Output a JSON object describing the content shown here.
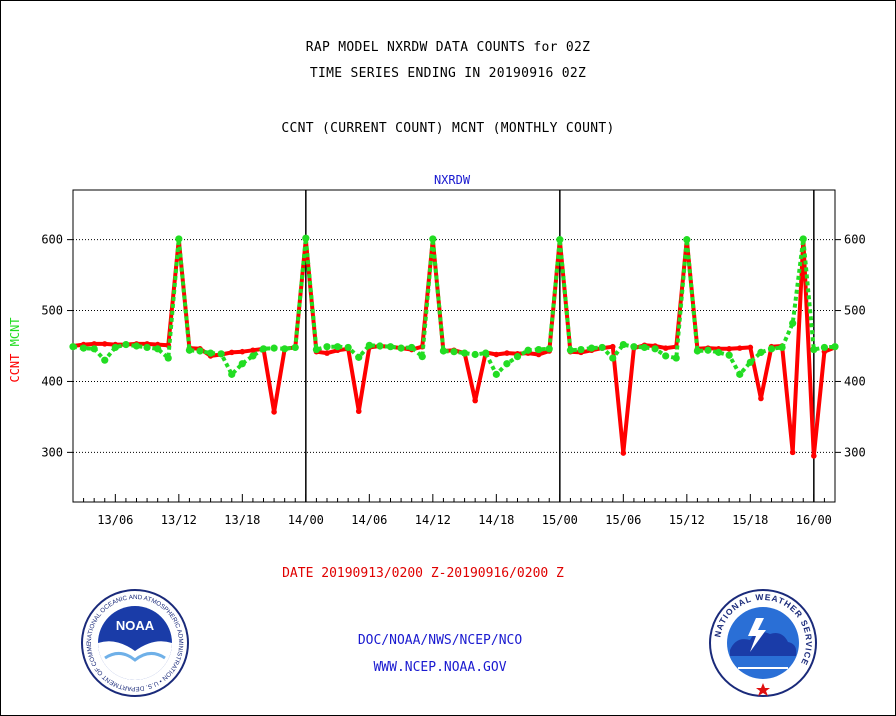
{
  "header": {
    "line1": "RAP MODEL NXRDW DATA COUNTS for 02Z",
    "line2": "TIME SERIES ENDING IN 20190916 02Z",
    "line3": "CCNT (CURRENT COUNT) MCNT (MONTHLY COUNT)"
  },
  "footer": {
    "date_range": "DATE 20190913/0200 Z-20190916/0200 Z",
    "org_path": "DOC/NOAA/NWS/NCEP/NCO",
    "website": "WWW.NCEP.NOAA.GOV"
  },
  "logos": {
    "noaa_text": "NOAA",
    "noaa_ring": "NATIONAL OCEANIC AND ATMOSPHERIC ADMINISTRATION • U.S. DEPARTMENT OF COMMERCE •",
    "nws_ring": "NATIONAL WEATHER SERVICE"
  },
  "colors": {
    "ccnt": "#ff0000",
    "mcnt": "#22dd22",
    "axis": "#000000",
    "chart_title": "#1a1ad0"
  },
  "chart_data": {
    "type": "line",
    "title": "NXRDW",
    "ylabel_parts": [
      {
        "text": "CCNT",
        "color": "#ff0000"
      },
      {
        "text": "MCNT",
        "color": "#22dd22"
      }
    ],
    "xlabel": "",
    "x_unit": "hours from 20190913/02Z",
    "xlim": [
      0,
      72
    ],
    "ylim": [
      230,
      670
    ],
    "yticks": [
      300,
      400,
      500,
      600
    ],
    "grid": "horizontal dotted",
    "xticks": [
      {
        "x": 4,
        "label": "13/06"
      },
      {
        "x": 10,
        "label": "13/12"
      },
      {
        "x": 16,
        "label": "13/18"
      },
      {
        "x": 22,
        "label": "14/00"
      },
      {
        "x": 28,
        "label": "14/06"
      },
      {
        "x": 34,
        "label": "14/12"
      },
      {
        "x": 40,
        "label": "14/18"
      },
      {
        "x": 46,
        "label": "15/00"
      },
      {
        "x": 52,
        "label": "15/06"
      },
      {
        "x": 58,
        "label": "15/12"
      },
      {
        "x": 64,
        "label": "15/18"
      },
      {
        "x": 70,
        "label": "16/00"
      }
    ],
    "day_boundaries": [
      22,
      46,
      70
    ],
    "series": [
      {
        "name": "CCNT",
        "color": "#ff0000",
        "x": [
          0,
          1,
          2,
          3,
          4,
          5,
          6,
          7,
          8,
          9,
          10,
          11,
          12,
          13,
          14,
          15,
          16,
          17,
          18,
          19,
          20,
          21,
          22,
          23,
          24,
          25,
          26,
          27,
          28,
          29,
          30,
          31,
          32,
          33,
          34,
          35,
          36,
          37,
          38,
          39,
          40,
          41,
          42,
          43,
          44,
          45,
          46,
          47,
          48,
          49,
          50,
          51,
          52,
          53,
          54,
          55,
          56,
          57,
          58,
          59,
          60,
          61,
          62,
          63,
          64,
          65,
          66,
          67,
          68,
          69,
          70,
          71,
          72
        ],
        "values": [
          450,
          452,
          453,
          453,
          452,
          452,
          453,
          453,
          452,
          451,
          600,
          447,
          446,
          436,
          438,
          441,
          442,
          444,
          446,
          357,
          446,
          448,
          600,
          442,
          440,
          444,
          446,
          358,
          448,
          450,
          449,
          447,
          445,
          449,
          600,
          443,
          444,
          440,
          373,
          441,
          438,
          440,
          439,
          440,
          438,
          443,
          600,
          442,
          441,
          444,
          447,
          449,
          299,
          447,
          451,
          450,
          447,
          449,
          600,
          446,
          447,
          446,
          446,
          447,
          448,
          376,
          449,
          450,
          300,
          600,
          295,
          442,
          448
        ]
      },
      {
        "name": "MCNT",
        "color": "#22dd22",
        "x": [
          0,
          1,
          2,
          3,
          4,
          5,
          6,
          7,
          8,
          9,
          10,
          11,
          12,
          13,
          14,
          15,
          16,
          17,
          18,
          19,
          20,
          21,
          22,
          23,
          24,
          25,
          26,
          27,
          28,
          29,
          30,
          31,
          32,
          33,
          34,
          35,
          36,
          37,
          38,
          39,
          40,
          41,
          42,
          43,
          44,
          45,
          46,
          47,
          48,
          49,
          50,
          51,
          52,
          53,
          54,
          55,
          56,
          57,
          58,
          59,
          60,
          61,
          62,
          63,
          64,
          65,
          66,
          67,
          68,
          69,
          70,
          71,
          72
        ],
        "values": [
          449,
          447,
          446,
          430,
          448,
          452,
          450,
          448,
          446,
          433,
          601,
          444,
          443,
          440,
          439,
          410,
          425,
          436,
          446,
          447,
          446,
          448,
          602,
          445,
          449,
          449,
          448,
          434,
          451,
          450,
          449,
          447,
          448,
          435,
          601,
          443,
          442,
          440,
          438,
          440,
          410,
          425,
          435,
          444,
          445,
          446,
          600,
          444,
          445,
          447,
          448,
          433,
          452,
          449,
          448,
          446,
          436,
          433,
          600,
          443,
          444,
          441,
          437,
          410,
          427,
          441,
          446,
          448,
          482,
          601,
          445,
          448,
          449
        ]
      }
    ]
  }
}
